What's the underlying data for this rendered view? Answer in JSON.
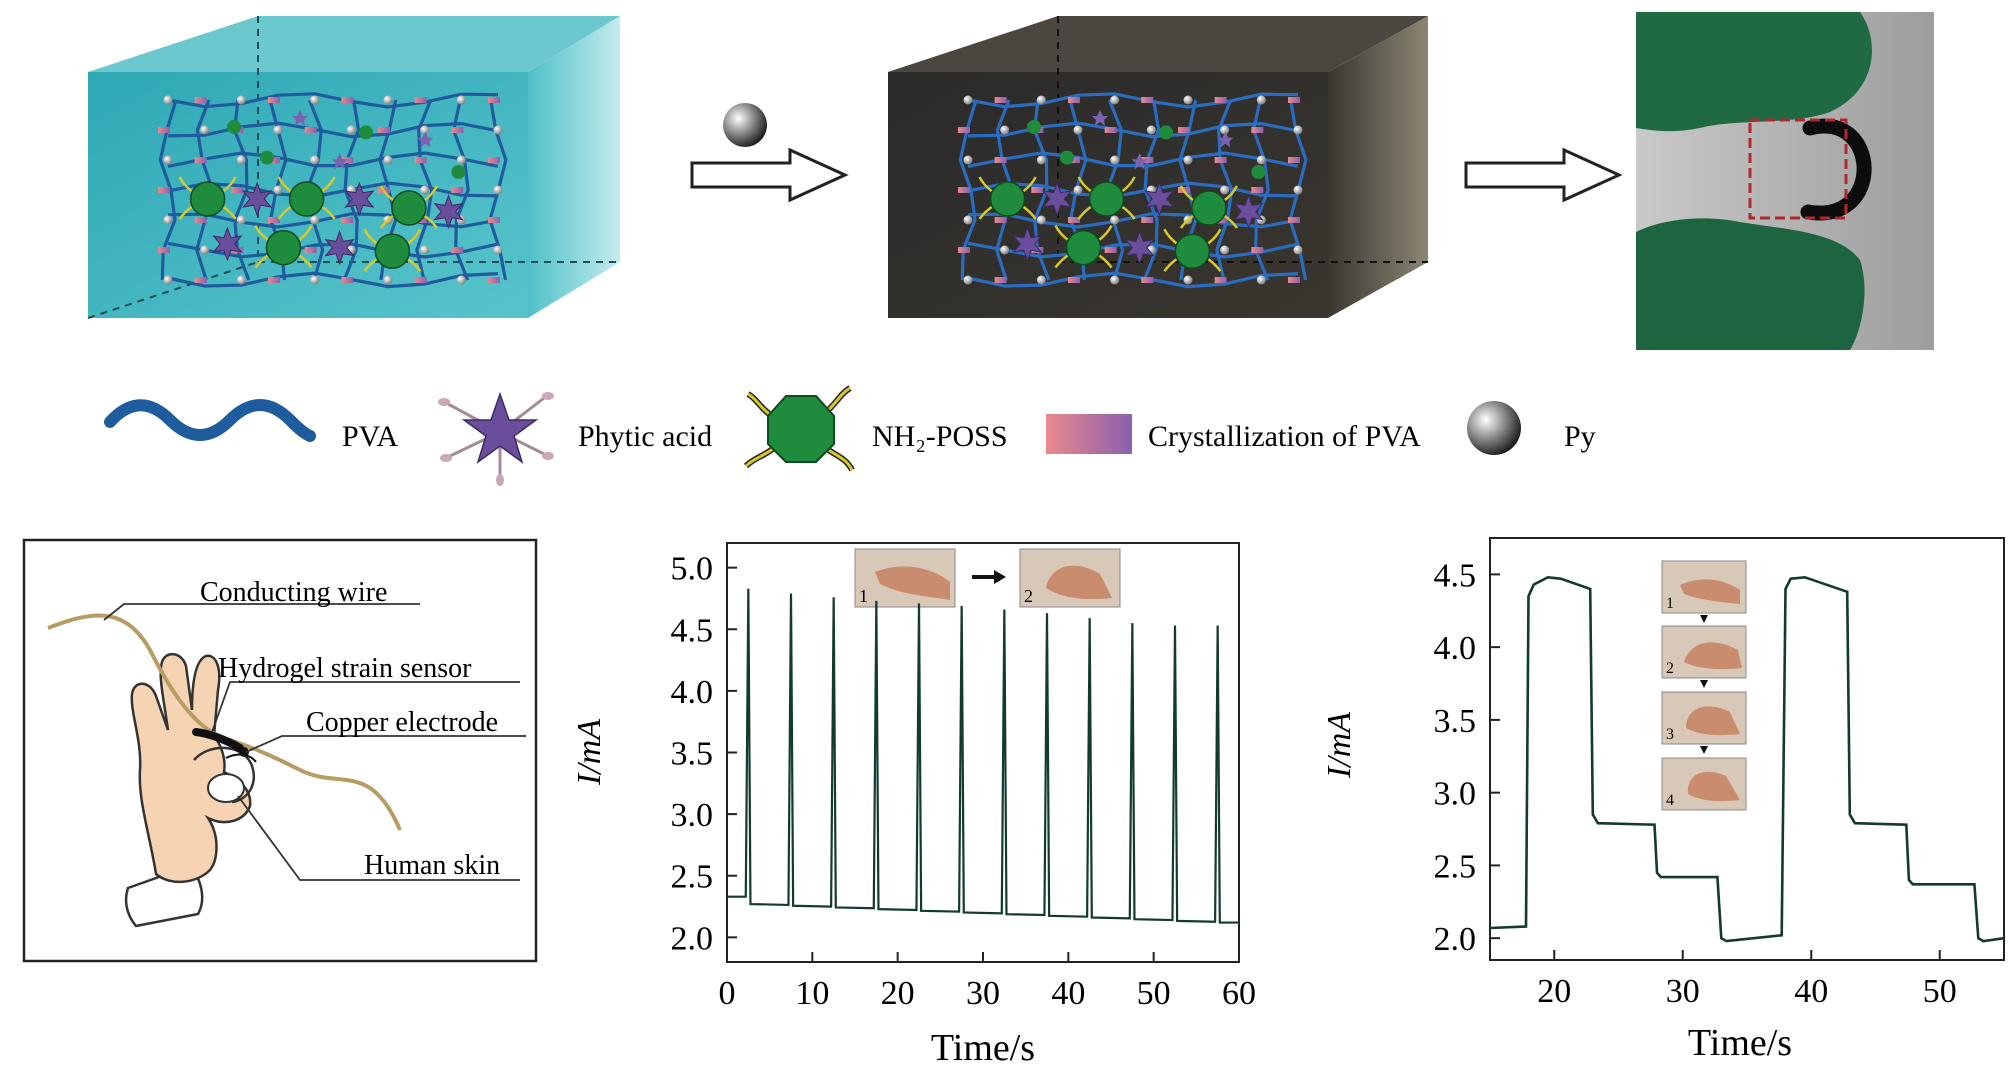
{
  "legend": {
    "pva": "PVA",
    "phytic_acid": "Phytic acid",
    "nh2_poss": "NH₂-POSS",
    "crystallization": "Crystallization of PVA",
    "py": "Py"
  },
  "sensor_diagram": {
    "conducting_wire": "Conducting wire",
    "hydrogel_strain_sensor": "Hydrogel strain sensor",
    "copper_electrode": "Copper electrode",
    "human_skin": "Human skin"
  },
  "colors": {
    "hydrogel_box": "#3fb2be",
    "composite_box": "#2e2c28",
    "pva_chain": "#1f5c9e",
    "phytic_acid": "#6a4e9c",
    "poss": "#1e8c3c",
    "poss_arms": "#d8c92a",
    "glove": "#1f6a43",
    "highlight_box": "#b0282e",
    "wire": "#c2a66e",
    "skin": "#f5d3b3"
  },
  "chart_data": [
    {
      "type": "line",
      "title": "",
      "xlabel": "Time/s",
      "ylabel": "I/mA",
      "xlim": [
        0,
        60
      ],
      "ylim": [
        1.8,
        5.2
      ],
      "xticks": [
        "0",
        "10",
        "20",
        "30",
        "40",
        "50",
        "60"
      ],
      "yticks": [
        "2.0",
        "2.5",
        "3.0",
        "3.5",
        "4.0",
        "4.5",
        "5.0"
      ],
      "inset_labels": [
        "1",
        "2"
      ],
      "series": [
        {
          "name": "current",
          "baseline_start": 2.33,
          "baseline_after_first_drop": 2.27,
          "baseline_end": 2.12,
          "peaks": [
            {
              "t": 2.5,
              "value": 4.83
            },
            {
              "t": 7.5,
              "value": 4.79
            },
            {
              "t": 12.5,
              "value": 4.76
            },
            {
              "t": 17.5,
              "value": 4.73
            },
            {
              "t": 22.5,
              "value": 4.71
            },
            {
              "t": 27.5,
              "value": 4.69
            },
            {
              "t": 32.5,
              "value": 4.66
            },
            {
              "t": 37.5,
              "value": 4.63
            },
            {
              "t": 42.5,
              "value": 4.59
            },
            {
              "t": 47.5,
              "value": 4.55
            },
            {
              "t": 52.5,
              "value": 4.53
            },
            {
              "t": 57.5,
              "value": 4.53
            }
          ]
        }
      ]
    },
    {
      "type": "line",
      "title": "",
      "xlabel": "Time/s",
      "ylabel": "I/mA",
      "xlim": [
        15,
        55
      ],
      "ylim": [
        1.85,
        4.75
      ],
      "xticks": [
        "20",
        "30",
        "40",
        "50"
      ],
      "yticks": [
        "2.0",
        "2.5",
        "3.0",
        "3.5",
        "4.0",
        "4.5"
      ],
      "inset_labels": [
        "1",
        "2",
        "3",
        "4"
      ],
      "series": [
        {
          "name": "current",
          "x": [
            15,
            17.8,
            18.0,
            18.4,
            19.5,
            20.5,
            22.8,
            23.0,
            23.4,
            27.8,
            28.0,
            28.3,
            32.7,
            33.0,
            33.4,
            37.7,
            38.0,
            38.4,
            39.5,
            40.5,
            42.8,
            43.0,
            43.4,
            47.4,
            47.6,
            47.9,
            52.7,
            53.0,
            53.4,
            55
          ],
          "y": [
            2.07,
            2.08,
            4.35,
            4.43,
            4.48,
            4.47,
            4.4,
            2.85,
            2.79,
            2.78,
            2.45,
            2.42,
            2.42,
            2.0,
            1.98,
            2.02,
            4.4,
            4.47,
            4.48,
            4.45,
            4.38,
            2.85,
            2.79,
            2.78,
            2.4,
            2.37,
            2.37,
            2.0,
            1.98,
            2.0
          ]
        }
      ]
    }
  ]
}
